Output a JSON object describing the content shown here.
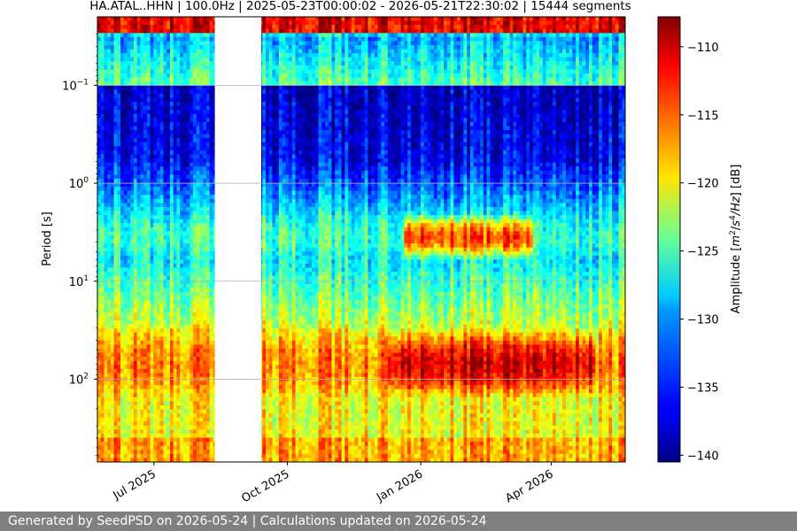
{
  "chart_data": {
    "type": "heatmap",
    "title": "HA.ATAL..HHN | 100.0Hz | 2025-05-23T00:00:02 - 2026-05-21T22:30:02 | 15444 segments",
    "xlabel": "",
    "ylabel": "Period [s]",
    "x_range": [
      "2025-05-23T00:00:02",
      "2026-05-21T22:30:02"
    ],
    "x_ticks": [
      {
        "date": "2025-07-01",
        "label": "Jul 2025"
      },
      {
        "date": "2025-10-01",
        "label": "Oct 2025"
      },
      {
        "date": "2026-01-01",
        "label": "Jan 2026"
      },
      {
        "date": "2026-04-01",
        "label": "Apr 2026"
      }
    ],
    "y_scale": "log",
    "y_inverted": true,
    "y_range": [
      0.02,
      700
    ],
    "y_ticks": [
      {
        "value": 0.1,
        "base": "10",
        "exp": "−1"
      },
      {
        "value": 1,
        "base": "10",
        "exp": "0"
      },
      {
        "value": 10,
        "base": "10",
        "exp": "1"
      },
      {
        "value": 100,
        "base": "10",
        "exp": "2"
      }
    ],
    "grid": "horizontal",
    "data_gap": [
      "2025-08-12",
      "2025-09-13"
    ],
    "colormap": "jet",
    "colorbar": {
      "range": [
        -140.5,
        -107.8
      ],
      "ticks": [
        -110,
        -115,
        -120,
        -125,
        -130,
        -135,
        -140
      ],
      "tick_labels": [
        "−110",
        "−115",
        "−120",
        "−125",
        "−130",
        "−135",
        "−140"
      ],
      "label_parts": {
        "pre": "Amplitude [",
        "m": "m",
        "m_exp": "2",
        "mid": "/",
        "s": "s",
        "s_exp": "4",
        "hz": "/Hz",
        "post": "] [dB]"
      }
    }
  },
  "footer": {
    "text": "Generated by SeedPSD on 2026-05-24 | Calculations updated on 2026-05-24"
  }
}
